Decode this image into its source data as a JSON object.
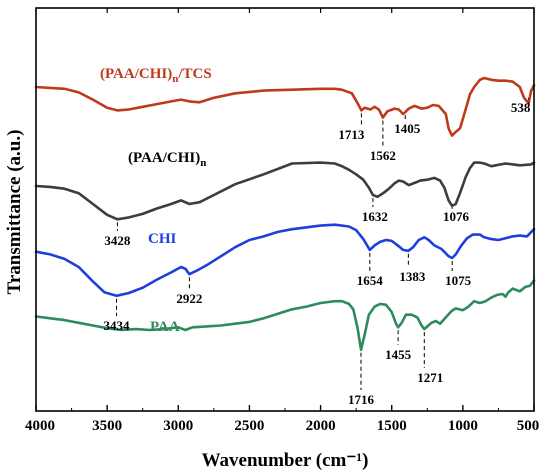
{
  "chart_data": {
    "type": "line",
    "title": "",
    "xlabel": "Wavenumber (cm⁻¹)",
    "ylabel": "Transmittance (a.u.)",
    "xlim": [
      4000,
      500
    ],
    "x_reversed": true,
    "x_ticks": [
      "4000",
      "3500",
      "3000",
      "2500",
      "2000",
      "1500",
      "1000",
      "500"
    ],
    "y_ticks_shown": false,
    "grid": false,
    "legend": "none",
    "series": [
      {
        "name": "(PAA/CHI)n/TCS",
        "label_main": "(PAA/CHI)",
        "label_sub": "n",
        "label_tail": "/TCS",
        "color": "#c0391b",
        "x": [
          4000,
          3900,
          3800,
          3700,
          3600,
          3500,
          3428,
          3350,
          3250,
          3150,
          3050,
          2980,
          2922,
          2850,
          2750,
          2600,
          2400,
          2200,
          2000,
          1900,
          1850,
          1780,
          1740,
          1713,
          1690,
          1650,
          1620,
          1590,
          1562,
          1530,
          1480,
          1450,
          1420,
          1405,
          1380,
          1340,
          1290,
          1250,
          1210,
          1170,
          1120,
          1100,
          1076,
          1050,
          1020,
          990,
          950,
          920,
          880,
          850,
          800,
          750,
          700,
          650,
          600,
          570,
          538,
          520,
          500
        ],
        "y": [
          70,
          69,
          68,
          64,
          56,
          47,
          44,
          45,
          48,
          51,
          54,
          56,
          54,
          53,
          58,
          63,
          66,
          67,
          68,
          68,
          67,
          63,
          52,
          44,
          47,
          45,
          48,
          45,
          36,
          43,
          46,
          45,
          40,
          42,
          46,
          49,
          46,
          47,
          50,
          49,
          40,
          24,
          16,
          20,
          24,
          40,
          62,
          70,
          78,
          80,
          78,
          77,
          77,
          76,
          70,
          58,
          52,
          66,
          72
        ]
      },
      {
        "name": "(PAA/CHI)n",
        "label_main": "(PAA/CHI)",
        "label_sub": "n",
        "label_tail": "",
        "color": "#3d3d3d",
        "x": [
          4000,
          3900,
          3800,
          3700,
          3600,
          3500,
          3428,
          3350,
          3250,
          3150,
          3050,
          2980,
          2922,
          2850,
          2750,
          2600,
          2400,
          2200,
          2000,
          1900,
          1850,
          1800,
          1750,
          1700,
          1660,
          1632,
          1600,
          1560,
          1520,
          1480,
          1450,
          1420,
          1380,
          1330,
          1300,
          1250,
          1200,
          1160,
          1130,
          1100,
          1076,
          1050,
          1020,
          980,
          950,
          920,
          880,
          850,
          800,
          700,
          600,
          520,
          500
        ],
        "y": [
          -40,
          -41,
          -43,
          -48,
          -60,
          -72,
          -77,
          -75,
          -71,
          -65,
          -60,
          -56,
          -60,
          -58,
          -50,
          -38,
          -27,
          -15,
          -14,
          -15,
          -18,
          -22,
          -27,
          -33,
          -42,
          -50,
          -52,
          -48,
          -43,
          -37,
          -34,
          -35,
          -39,
          -36,
          -34,
          -33,
          -31,
          -34,
          -42,
          -56,
          -62,
          -60,
          -48,
          -30,
          -20,
          -14,
          -14,
          -15,
          -18,
          -15,
          -17,
          -16,
          -14
        ]
      },
      {
        "name": "CHI",
        "label_main": "CHI",
        "label_sub": "",
        "label_tail": "",
        "color": "#1f3fdc",
        "x": [
          4000,
          3900,
          3800,
          3700,
          3600,
          3520,
          3434,
          3350,
          3250,
          3150,
          3050,
          2980,
          2950,
          2922,
          2870,
          2800,
          2700,
          2600,
          2500,
          2400,
          2300,
          2200,
          2000,
          1900,
          1800,
          1750,
          1700,
          1654,
          1620,
          1580,
          1540,
          1500,
          1450,
          1420,
          1383,
          1350,
          1310,
          1270,
          1240,
          1200,
          1150,
          1100,
          1075,
          1050,
          1010,
          970,
          930,
          880,
          850,
          800,
          750,
          700,
          650,
          600,
          550,
          500
        ],
        "y": [
          -113,
          -116,
          -121,
          -130,
          -146,
          -158,
          -162,
          -159,
          -153,
          -144,
          -136,
          -130,
          -132,
          -138,
          -134,
          -128,
          -118,
          -108,
          -100,
          -96,
          -91,
          -88,
          -84,
          -83,
          -85,
          -89,
          -99,
          -111,
          -106,
          -102,
          -100,
          -101,
          -107,
          -111,
          -112,
          -108,
          -100,
          -97,
          -100,
          -106,
          -110,
          -118,
          -120,
          -116,
          -106,
          -98,
          -94,
          -94,
          -97,
          -99,
          -100,
          -98,
          -96,
          -95,
          -96,
          -88
        ]
      },
      {
        "name": "PAA",
        "label_main": "PAA",
        "label_sub": "",
        "label_tail": "",
        "color": "#2e8b5e",
        "x": [
          4000,
          3900,
          3800,
          3700,
          3600,
          3500,
          3400,
          3300,
          3200,
          3100,
          3000,
          2950,
          2900,
          2800,
          2700,
          2600,
          2500,
          2400,
          2300,
          2200,
          2100,
          2000,
          1900,
          1850,
          1800,
          1770,
          1740,
          1716,
          1690,
          1660,
          1620,
          1580,
          1540,
          1500,
          1470,
          1455,
          1430,
          1400,
          1360,
          1320,
          1290,
          1271,
          1250,
          1220,
          1190,
          1160,
          1120,
          1080,
          1050,
          1000,
          960,
          920,
          880,
          840,
          800,
          760,
          720,
          700,
          680,
          650,
          600,
          560,
          530,
          500
        ],
        "y": [
          -185,
          -187,
          -189,
          -192,
          -195,
          -198,
          -200,
          -199,
          -200,
          -199,
          -197,
          -200,
          -197,
          -196,
          -195,
          -193,
          -191,
          -187,
          -182,
          -177,
          -174,
          -170,
          -168,
          -168,
          -171,
          -177,
          -198,
          -222,
          -205,
          -183,
          -174,
          -171,
          -172,
          -180,
          -193,
          -197,
          -192,
          -183,
          -183,
          -186,
          -195,
          -199,
          -196,
          -192,
          -190,
          -193,
          -186,
          -179,
          -176,
          -178,
          -174,
          -168,
          -170,
          -168,
          -164,
          -161,
          -160,
          -163,
          -158,
          -154,
          -157,
          -152,
          -151,
          -145
        ]
      }
    ],
    "annotations": [
      {
        "text": "1713",
        "x": 1713,
        "series": 0,
        "placement": "below"
      },
      {
        "text": "1562",
        "x": 1562,
        "series": 0,
        "placement": "below"
      },
      {
        "text": "1405",
        "x": 1405,
        "series": 0,
        "placement": "below"
      },
      {
        "text": "538",
        "x": 538,
        "series": 0,
        "placement": "below"
      },
      {
        "text": "1632",
        "x": 1632,
        "series": 1,
        "placement": "below"
      },
      {
        "text": "1076",
        "x": 1076,
        "series": 1,
        "placement": "below"
      },
      {
        "text": "3428",
        "x": 3428,
        "series": 1,
        "placement": "below"
      },
      {
        "text": "1654",
        "x": 1654,
        "series": 2,
        "placement": "below"
      },
      {
        "text": "1383",
        "x": 1383,
        "series": 2,
        "placement": "below"
      },
      {
        "text": "1075",
        "x": 1075,
        "series": 2,
        "placement": "below"
      },
      {
        "text": "2922",
        "x": 2922,
        "series": 2,
        "placement": "below"
      },
      {
        "text": "3434",
        "x": 3434,
        "series": 2,
        "placement": "below"
      },
      {
        "text": "1716",
        "x": 1716,
        "series": 3,
        "placement": "below"
      },
      {
        "text": "1455",
        "x": 1455,
        "series": 3,
        "placement": "below"
      },
      {
        "text": "1271",
        "x": 1271,
        "series": 3,
        "placement": "below"
      }
    ]
  }
}
